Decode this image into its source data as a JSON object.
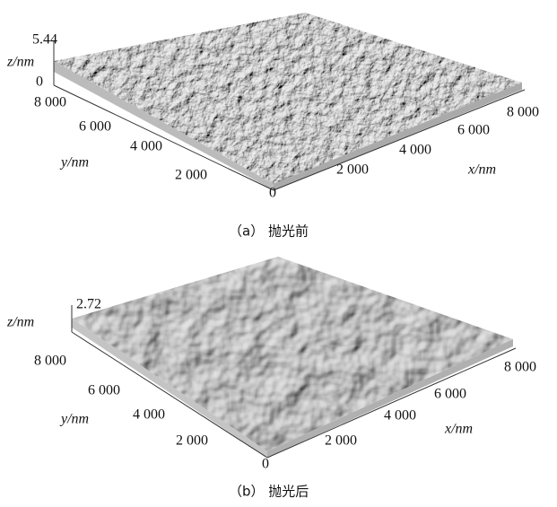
{
  "panels": [
    {
      "z_label": "z/nm",
      "z_top": "5.44",
      "z_zero": "0",
      "y_label": "y/nm",
      "x_label": "x/nm",
      "y_ticks": [
        "8 000",
        "6 000",
        "4 000",
        "2 000"
      ],
      "origin": "0",
      "x_ticks": [
        "2 000",
        "4 000",
        "6 000",
        "8 000"
      ],
      "caption": "（a） 抛光前"
    },
    {
      "z_label": "z/nm",
      "z_top": "2.72",
      "y_label": "y/nm",
      "x_label": "x/nm",
      "y_ticks": [
        "8 000",
        "6 000",
        "4 000",
        "2 000"
      ],
      "origin": "0",
      "x_ticks": [
        "2 000",
        "4 000",
        "6 000",
        "8 000"
      ],
      "caption": "（b） 抛光后"
    }
  ]
}
